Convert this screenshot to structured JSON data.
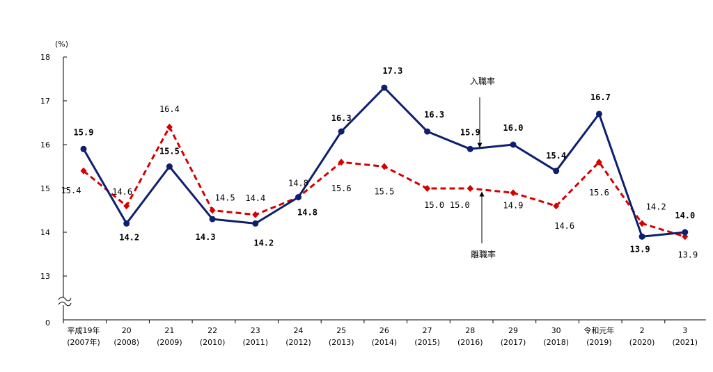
{
  "chart_data": {
    "type": "line",
    "ylabel": "(%)",
    "ylim": [
      13,
      18
    ],
    "yticks": [
      "18",
      "17",
      "16",
      "15",
      "14",
      "13"
    ],
    "y_zero_label": "0",
    "axis_break": true,
    "categories": [
      [
        "平成19年",
        "(2007年)"
      ],
      [
        "20",
        "(2008)"
      ],
      [
        "21",
        "(2009)"
      ],
      [
        "22",
        "(2010)"
      ],
      [
        "23",
        "(2011)"
      ],
      [
        "24",
        "(2012)"
      ],
      [
        "25",
        "(2013)"
      ],
      [
        "26",
        "(2014)"
      ],
      [
        "27",
        "(2015)"
      ],
      [
        "28",
        "(2016)"
      ],
      [
        "29",
        "(2017)"
      ],
      [
        "30",
        "(2018)"
      ],
      [
        "令和元年",
        "(2019)"
      ],
      [
        "2",
        "(2020)"
      ],
      [
        "3",
        "(2021)"
      ]
    ],
    "series": [
      {
        "name": "入職率",
        "color": "#0d1f6e",
        "style": "solid",
        "marker": "circle",
        "values": [
          15.9,
          14.2,
          15.5,
          14.3,
          14.2,
          14.8,
          16.3,
          17.3,
          16.3,
          15.9,
          16.0,
          15.4,
          16.7,
          13.9,
          14.0
        ],
        "labels": [
          "15.9",
          "14.2",
          "15.5",
          "14.3",
          "14.2",
          "14.8",
          "16.3",
          "17.3",
          "16.3",
          "15.9",
          "16.0",
          "15.4",
          "16.7",
          "13.9",
          "14.0"
        ]
      },
      {
        "name": "離職率",
        "color": "#d40000",
        "style": "dashed",
        "marker": "diamond",
        "values": [
          15.4,
          14.6,
          16.4,
          14.5,
          14.4,
          14.8,
          15.6,
          15.5,
          15.0,
          15.0,
          14.9,
          14.6,
          15.6,
          14.2,
          13.9
        ],
        "labels": [
          "15.4",
          "14.6",
          "16.4",
          "14.5",
          "14.4",
          "14.8",
          "15.6",
          "15.5",
          "15.0",
          "15.0",
          "14.9",
          "14.6",
          "15.6",
          "14.2",
          "13.9"
        ]
      }
    ]
  }
}
